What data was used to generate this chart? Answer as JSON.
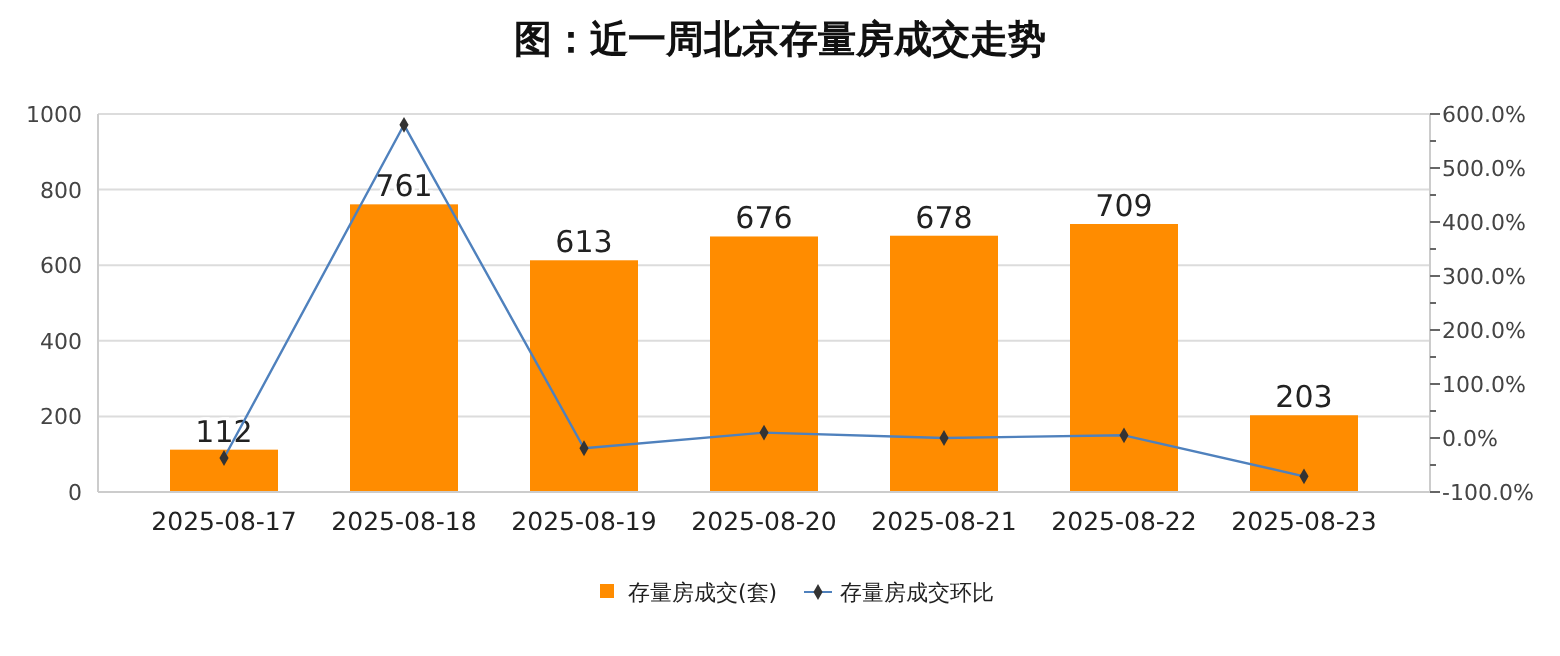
{
  "chart_data": {
    "type": "bar",
    "title": "图：近一周北京存量房成交走势",
    "categories": [
      "2025-08-17",
      "2025-08-18",
      "2025-08-19",
      "2025-08-20",
      "2025-08-21",
      "2025-08-22",
      "2025-08-23"
    ],
    "series": [
      {
        "name": "存量房成交(套)",
        "color": "#ff8c00",
        "values": [
          112,
          761,
          613,
          676,
          678,
          709,
          203
        ]
      },
      {
        "name": "存量房成交环比",
        "type": "line",
        "axis": "y2",
        "color": "#4f81bd",
        "values": [
          -37,
          580,
          -19,
          10,
          0,
          5,
          -71
        ]
      }
    ],
    "ylim": [
      0,
      1000
    ],
    "yticks": [
      0,
      200,
      400,
      600,
      800,
      1000
    ],
    "y2lim": [
      -100,
      600
    ],
    "y2ticks": [
      {
        "value": -100,
        "label": "-100.0%"
      },
      {
        "value": 0,
        "label": "0.0%"
      },
      {
        "value": 100,
        "label": "100.0%"
      },
      {
        "value": 200,
        "label": "200.0%"
      },
      {
        "value": 300,
        "label": "300.0%"
      },
      {
        "value": 400,
        "label": "400.0%"
      },
      {
        "value": 500,
        "label": "500.0%"
      },
      {
        "value": 600,
        "label": "600.0%"
      }
    ],
    "grid": "y",
    "legend": "bottom",
    "marker": "diamond",
    "value_labels": [
      "112",
      "761",
      "613",
      "676",
      "678",
      "709",
      "203"
    ]
  }
}
